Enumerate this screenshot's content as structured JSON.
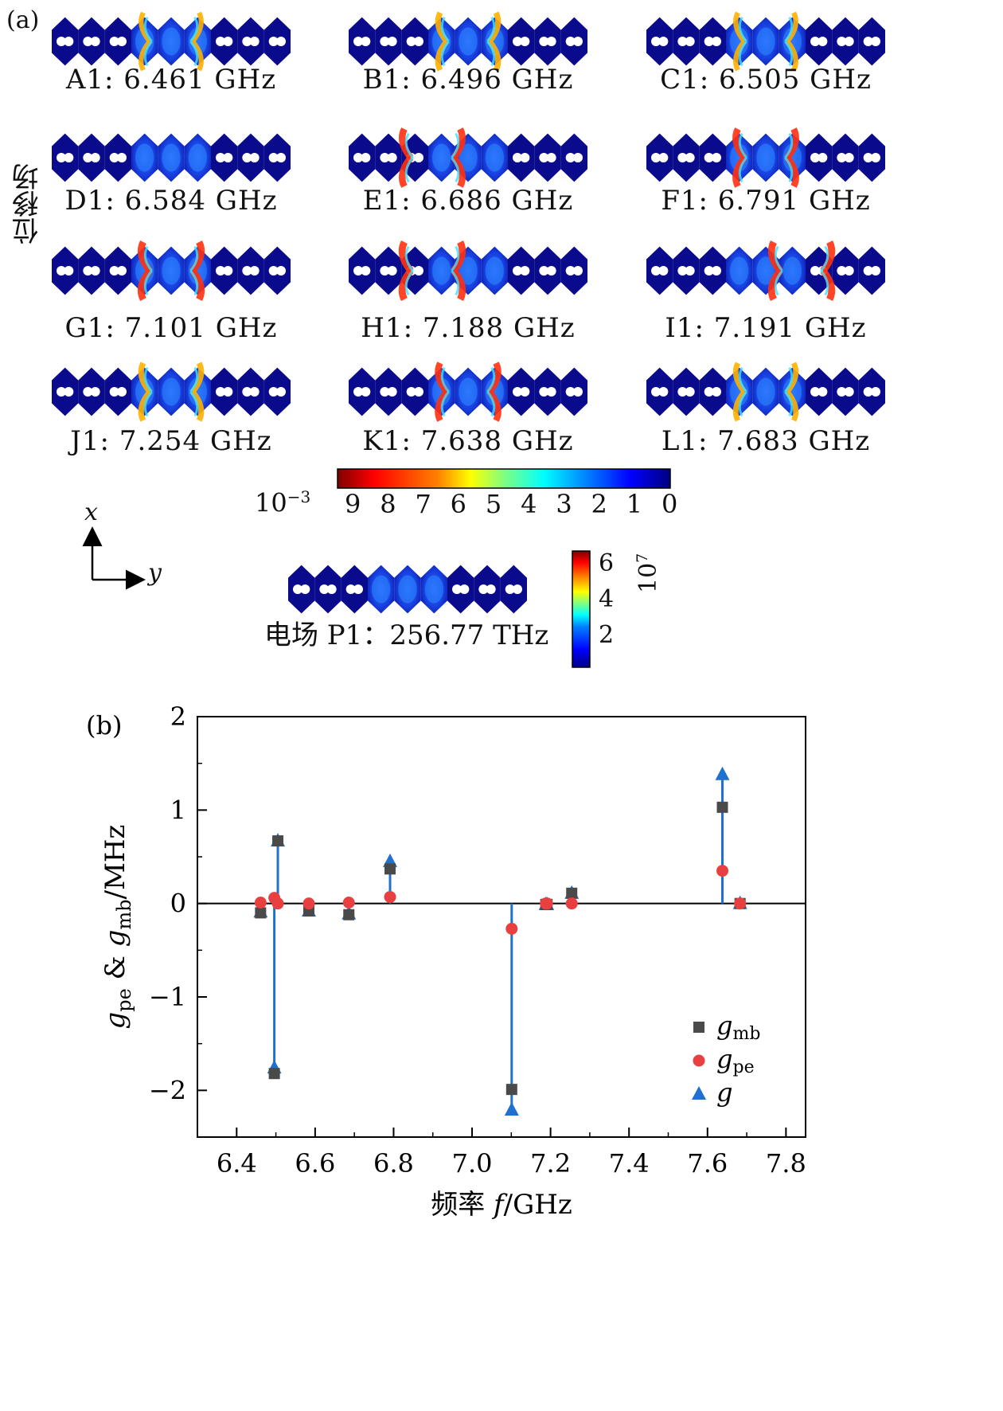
{
  "panel_a": {
    "label": "(a)",
    "side_label": "位移场",
    "modes": [
      {
        "id": "A1",
        "caption": "A1: 6.461 GHz",
        "hot": 0.3,
        "style": "center"
      },
      {
        "id": "B1",
        "caption": "B1: 6.496 GHz",
        "hot": 0.55,
        "style": "center"
      },
      {
        "id": "C1",
        "caption": "C1: 6.505 GHz",
        "hot": 0.35,
        "style": "center"
      },
      {
        "id": "D1",
        "caption": "D1: 6.584 GHz",
        "hot": 0.2,
        "style": "center"
      },
      {
        "id": "E1",
        "caption": "E1: 6.686 GHz",
        "hot": 0.85,
        "style": "left"
      },
      {
        "id": "F1",
        "caption": "F1: 6.791 GHz",
        "hot": 0.8,
        "style": "center"
      },
      {
        "id": "G1",
        "caption": "G1: 7.101 GHz",
        "hot": 0.9,
        "style": "center"
      },
      {
        "id": "H1",
        "caption": "H1: 7.188 GHz",
        "hot": 0.95,
        "style": "left"
      },
      {
        "id": "I1",
        "caption": "I1: 7.191 GHz",
        "hot": 0.95,
        "style": "right"
      },
      {
        "id": "J1",
        "caption": "J1: 7.254 GHz",
        "hot": 0.55,
        "style": "center"
      },
      {
        "id": "K1",
        "caption": "K1: 7.638 GHz",
        "hot": 0.75,
        "style": "center"
      },
      {
        "id": "L1",
        "caption": "L1: 7.683 GHz",
        "hot": 0.45,
        "style": "center"
      }
    ],
    "colorbar": {
      "exponent_base": "10",
      "exponent": "−3",
      "ticks": [
        "9",
        "8",
        "7",
        "6",
        "5",
        "4",
        "3",
        "2",
        "1",
        "0"
      ],
      "reversed": true,
      "colormap": "jet"
    },
    "axes_indicator": {
      "x": "x",
      "y": "y"
    },
    "electric_field": {
      "caption": "电场 P1：256.77 THz",
      "colorbar_ticks": [
        "6",
        "4",
        "2"
      ],
      "colorbar_base": "10",
      "colorbar_exponent": "7"
    }
  },
  "chart_data": {
    "type": "scatter",
    "panel_label": "(b)",
    "xlabel_cn": "频率",
    "xlabel_var": "f",
    "xlabel_unit": "/GHz",
    "ylabel": "g_pe & g_mb/MHz",
    "xlim": [
      6.3,
      7.85
    ],
    "ylim": [
      -2.5,
      2.0
    ],
    "xticks": [
      "6.4",
      "6.6",
      "6.8",
      "7.0",
      "7.2",
      "7.4",
      "7.6",
      "7.8"
    ],
    "yticks": [
      "2",
      "1",
      "0",
      "−1",
      "−2"
    ],
    "legend_position": "right",
    "grid": false,
    "series": [
      {
        "name": "g_mb",
        "legend_main": "g",
        "legend_sub": "mb",
        "marker": "square",
        "color": "#4a4a4a",
        "x": [
          6.461,
          6.496,
          6.505,
          6.584,
          6.686,
          6.791,
          7.101,
          7.188,
          7.191,
          7.254,
          7.638,
          7.683
        ],
        "y": [
          -0.1,
          -1.82,
          0.67,
          -0.08,
          -0.12,
          0.37,
          -1.99,
          -0.01,
          -0.01,
          0.11,
          1.03,
          0.0
        ]
      },
      {
        "name": "g_pe",
        "legend_main": "g",
        "legend_sub": "pe",
        "marker": "circle",
        "color": "#e84040",
        "x": [
          6.461,
          6.496,
          6.505,
          6.584,
          6.686,
          6.791,
          7.101,
          7.188,
          7.191,
          7.254,
          7.638,
          7.683
        ],
        "y": [
          0.01,
          0.06,
          0.0,
          0.0,
          0.01,
          0.07,
          -0.27,
          0.0,
          0.0,
          0.0,
          0.35,
          0.0
        ]
      },
      {
        "name": "g",
        "legend_main": "g",
        "legend_sub": "",
        "marker": "triangle",
        "color": "#2070d0",
        "x": [
          6.461,
          6.496,
          6.505,
          6.584,
          6.686,
          6.791,
          7.101,
          7.188,
          7.191,
          7.254,
          7.638,
          7.683
        ],
        "y": [
          -0.09,
          -1.76,
          0.67,
          -0.08,
          -0.11,
          0.45,
          -2.21,
          -0.01,
          -0.01,
          0.11,
          1.38,
          0.0
        ]
      }
    ]
  }
}
